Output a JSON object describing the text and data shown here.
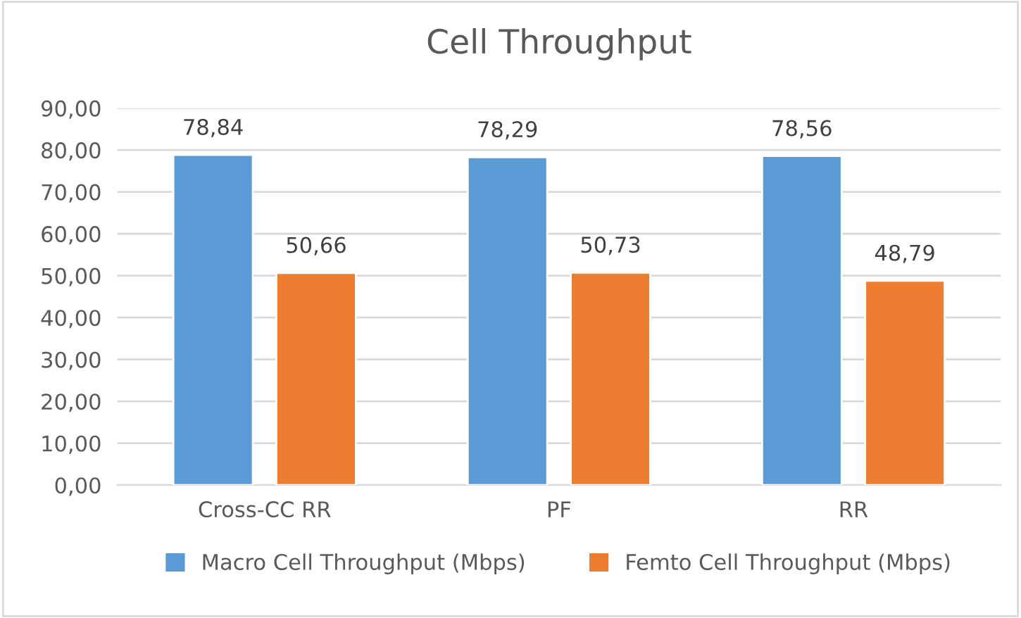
{
  "chart_data": {
    "type": "bar",
    "title": "Cell Throughput",
    "categories": [
      "Cross-CC RR",
      "PF",
      "RR"
    ],
    "series": [
      {
        "name": "Macro Cell Throughput (Mbps)",
        "color": "#5b9bd5",
        "values": [
          78.84,
          78.29,
          78.56
        ],
        "value_labels": [
          "78,84",
          "78,29",
          "78,56"
        ]
      },
      {
        "name": "Femto Cell Throughput (Mbps)",
        "color": "#ed7d31",
        "values": [
          50.66,
          50.73,
          48.79
        ],
        "value_labels": [
          "50,66",
          "50,73",
          "48,79"
        ]
      }
    ],
    "ylim": [
      0,
      90
    ],
    "yticks": [
      {
        "value": 0,
        "label": "0,00"
      },
      {
        "value": 10,
        "label": "10,00"
      },
      {
        "value": 20,
        "label": "20,00"
      },
      {
        "value": 30,
        "label": "30,00"
      },
      {
        "value": 40,
        "label": "40,00"
      },
      {
        "value": 50,
        "label": "50,00"
      },
      {
        "value": 60,
        "label": "60,00"
      },
      {
        "value": 70,
        "label": "70,00"
      },
      {
        "value": 80,
        "label": "80,00"
      },
      {
        "value": 90,
        "label": "90,00"
      }
    ],
    "grid": "y",
    "legend": "bottom"
  }
}
